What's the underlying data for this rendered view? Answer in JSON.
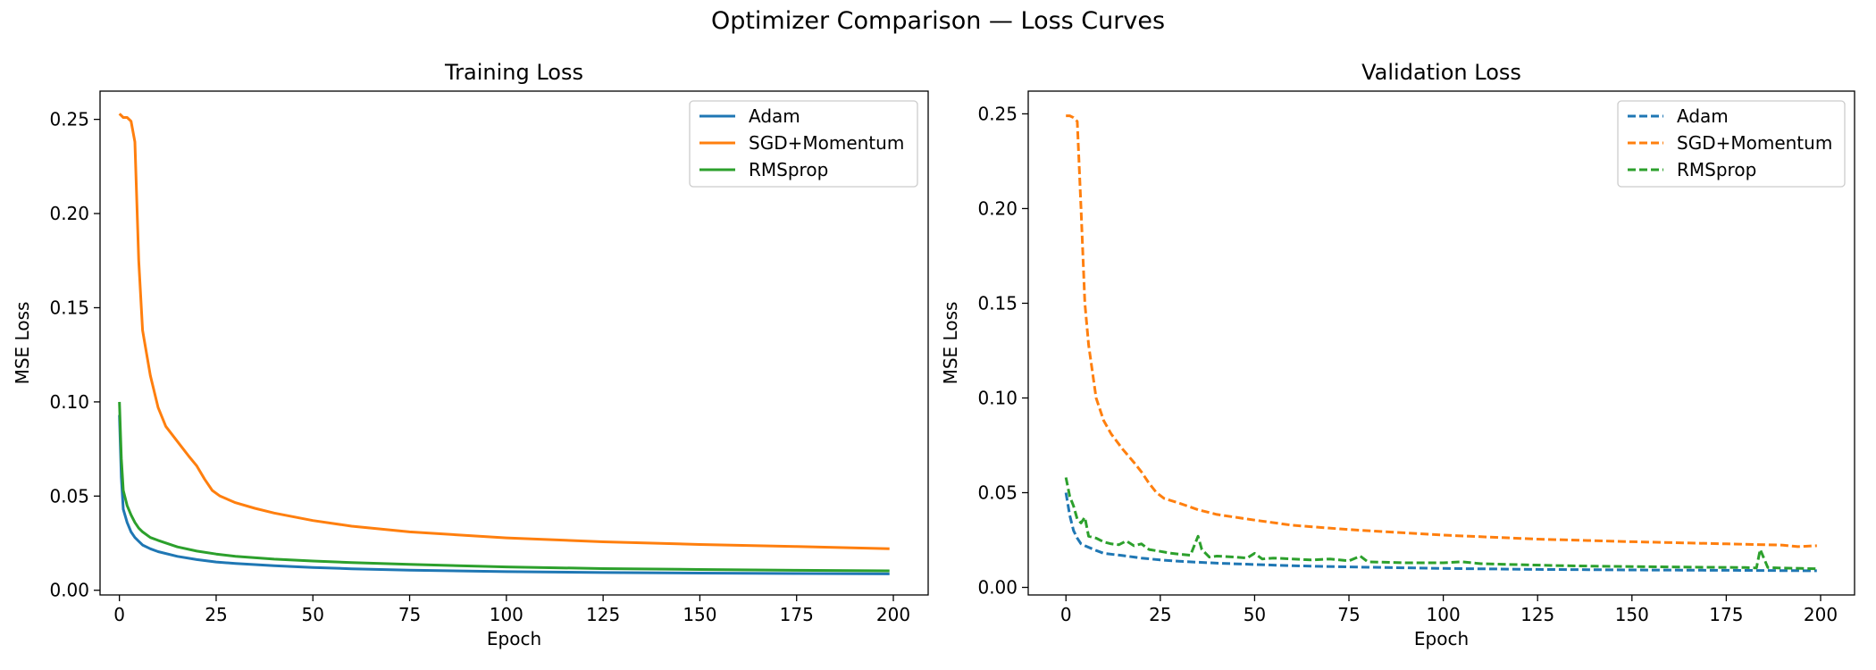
{
  "figure": {
    "suptitle": "Optimizer Comparison — Loss Curves"
  },
  "chart_data": [
    {
      "type": "line",
      "title": "Training Loss",
      "xlabel": "Epoch",
      "ylabel": "MSE Loss",
      "xlim": [
        -5,
        209
      ],
      "ylim": [
        -0.0025,
        0.265
      ],
      "xticks": [
        0,
        25,
        50,
        75,
        100,
        125,
        150,
        175,
        200
      ],
      "yticks": [
        0.0,
        0.05,
        0.1,
        0.15,
        0.2,
        0.25
      ],
      "ytick_labels": [
        "0.00",
        "0.05",
        "0.10",
        "0.15",
        "0.20",
        "0.25"
      ],
      "line_style": "solid",
      "legend_position": "top-right",
      "grid": false,
      "series": [
        {
          "name": "Adam",
          "color": "#1f77b4",
          "points": [
            [
              0,
              0.093
            ],
            [
              0.5,
              0.06
            ],
            [
              1,
              0.043
            ],
            [
              2,
              0.036
            ],
            [
              3,
              0.031
            ],
            [
              4,
              0.028
            ],
            [
              5,
              0.026
            ],
            [
              6,
              0.024
            ],
            [
              8,
              0.022
            ],
            [
              10,
              0.0205
            ],
            [
              15,
              0.018
            ],
            [
              20,
              0.0163
            ],
            [
              25,
              0.015
            ],
            [
              30,
              0.0142
            ],
            [
              40,
              0.013
            ],
            [
              50,
              0.0121
            ],
            [
              60,
              0.0114
            ],
            [
              75,
              0.0107
            ],
            [
              100,
              0.0099
            ],
            [
              125,
              0.0094
            ],
            [
              150,
              0.0091
            ],
            [
              175,
              0.0089
            ],
            [
              199,
              0.0087
            ]
          ]
        },
        {
          "name": "SGD+Momentum",
          "color": "#ff7f0e",
          "points": [
            [
              0,
              0.253
            ],
            [
              1,
              0.251
            ],
            [
              2,
              0.251
            ],
            [
              3,
              0.249
            ],
            [
              4,
              0.238
            ],
            [
              5,
              0.175
            ],
            [
              6,
              0.138
            ],
            [
              8,
              0.114
            ],
            [
              10,
              0.097
            ],
            [
              12,
              0.087
            ],
            [
              15,
              0.079
            ],
            [
              18,
              0.071
            ],
            [
              20,
              0.066
            ],
            [
              22,
              0.059
            ],
            [
              24,
              0.053
            ],
            [
              26,
              0.05
            ],
            [
              30,
              0.0465
            ],
            [
              35,
              0.0435
            ],
            [
              40,
              0.041
            ],
            [
              50,
              0.037
            ],
            [
              60,
              0.034
            ],
            [
              75,
              0.031
            ],
            [
              100,
              0.0278
            ],
            [
              125,
              0.0257
            ],
            [
              150,
              0.0243
            ],
            [
              175,
              0.0232
            ],
            [
              199,
              0.022
            ]
          ]
        },
        {
          "name": "RMSprop",
          "color": "#2ca02c",
          "points": [
            [
              0,
              0.1
            ],
            [
              0.5,
              0.07
            ],
            [
              1,
              0.053
            ],
            [
              2,
              0.045
            ],
            [
              3,
              0.04
            ],
            [
              4,
              0.036
            ],
            [
              5,
              0.033
            ],
            [
              6,
              0.031
            ],
            [
              8,
              0.028
            ],
            [
              10,
              0.0265
            ],
            [
              15,
              0.023
            ],
            [
              20,
              0.0208
            ],
            [
              25,
              0.0192
            ],
            [
              30,
              0.018
            ],
            [
              40,
              0.0165
            ],
            [
              50,
              0.0155
            ],
            [
              60,
              0.0147
            ],
            [
              75,
              0.0137
            ],
            [
              100,
              0.0124
            ],
            [
              125,
              0.0115
            ],
            [
              150,
              0.011
            ],
            [
              175,
              0.0106
            ],
            [
              199,
              0.0103
            ]
          ]
        }
      ]
    },
    {
      "type": "line",
      "title": "Validation Loss",
      "xlabel": "Epoch",
      "ylabel": "MSE Loss",
      "xlim": [
        -10,
        209
      ],
      "ylim": [
        -0.004,
        0.262
      ],
      "xticks": [
        0,
        25,
        50,
        75,
        100,
        125,
        150,
        175,
        200
      ],
      "yticks": [
        0.0,
        0.05,
        0.1,
        0.15,
        0.2,
        0.25
      ],
      "ytick_labels": [
        "0.00",
        "0.05",
        "0.10",
        "0.15",
        "0.20",
        "0.25"
      ],
      "line_style": "dashed",
      "legend_position": "top-right",
      "grid": false,
      "series": [
        {
          "name": "Adam",
          "color": "#1f77b4",
          "points": [
            [
              0,
              0.05
            ],
            [
              1,
              0.038
            ],
            [
              2,
              0.03
            ],
            [
              3,
              0.026
            ],
            [
              4,
              0.023
            ],
            [
              5,
              0.022
            ],
            [
              8,
              0.0195
            ],
            [
              10,
              0.018
            ],
            [
              15,
              0.0168
            ],
            [
              20,
              0.0155
            ],
            [
              25,
              0.0145
            ],
            [
              30,
              0.0138
            ],
            [
              40,
              0.0128
            ],
            [
              50,
              0.0121
            ],
            [
              60,
              0.0114
            ],
            [
              75,
              0.0108
            ],
            [
              100,
              0.01
            ],
            [
              125,
              0.0095
            ],
            [
              150,
              0.0092
            ],
            [
              175,
              0.009
            ],
            [
              199,
              0.0088
            ]
          ]
        },
        {
          "name": "SGD+Momentum",
          "color": "#ff7f0e",
          "points": [
            [
              0,
              0.249
            ],
            [
              1,
              0.249
            ],
            [
              2,
              0.248
            ],
            [
              3,
              0.246
            ],
            [
              4,
              0.2
            ],
            [
              5,
              0.15
            ],
            [
              6,
              0.128
            ],
            [
              8,
              0.1
            ],
            [
              10,
              0.088
            ],
            [
              12,
              0.081
            ],
            [
              15,
              0.073
            ],
            [
              18,
              0.066
            ],
            [
              20,
              0.061
            ],
            [
              22,
              0.055
            ],
            [
              24,
              0.05
            ],
            [
              26,
              0.047
            ],
            [
              30,
              0.0445
            ],
            [
              35,
              0.041
            ],
            [
              40,
              0.0385
            ],
            [
              50,
              0.0355
            ],
            [
              60,
              0.0328
            ],
            [
              75,
              0.0305
            ],
            [
              100,
              0.0276
            ],
            [
              125,
              0.0255
            ],
            [
              150,
              0.0241
            ],
            [
              175,
              0.023
            ],
            [
              190,
              0.0223
            ],
            [
              194,
              0.0215
            ],
            [
              199,
              0.022
            ]
          ]
        },
        {
          "name": "RMSprop",
          "color": "#2ca02c",
          "points": [
            [
              0,
              0.058
            ],
            [
              1,
              0.048
            ],
            [
              2,
              0.043
            ],
            [
              3,
              0.036
            ],
            [
              4,
              0.034
            ],
            [
              5,
              0.037
            ],
            [
              6,
              0.027
            ],
            [
              8,
              0.026
            ],
            [
              10,
              0.024
            ],
            [
              12,
              0.023
            ],
            [
              14,
              0.0225
            ],
            [
              16,
              0.0245
            ],
            [
              18,
              0.022
            ],
            [
              20,
              0.023
            ],
            [
              22,
              0.02
            ],
            [
              25,
              0.019
            ],
            [
              28,
              0.018
            ],
            [
              30,
              0.0175
            ],
            [
              33,
              0.017
            ],
            [
              35,
              0.027
            ],
            [
              36,
              0.02
            ],
            [
              38,
              0.016
            ],
            [
              40,
              0.0165
            ],
            [
              45,
              0.016
            ],
            [
              48,
              0.0155
            ],
            [
              50,
              0.018
            ],
            [
              52,
              0.015
            ],
            [
              55,
              0.0155
            ],
            [
              60,
              0.015
            ],
            [
              65,
              0.0145
            ],
            [
              70,
              0.015
            ],
            [
              75,
              0.014
            ],
            [
              78,
              0.0165
            ],
            [
              80,
              0.0135
            ],
            [
              90,
              0.013
            ],
            [
              100,
              0.013
            ],
            [
              105,
              0.0135
            ],
            [
              110,
              0.0125
            ],
            [
              120,
              0.012
            ],
            [
              130,
              0.0115
            ],
            [
              140,
              0.0112
            ],
            [
              150,
              0.011
            ],
            [
              160,
              0.0108
            ],
            [
              170,
              0.0106
            ],
            [
              180,
              0.0105
            ],
            [
              183,
              0.0103
            ],
            [
              184,
              0.02
            ],
            [
              186,
              0.0105
            ],
            [
              190,
              0.0102
            ],
            [
              195,
              0.01
            ],
            [
              199,
              0.0098
            ]
          ]
        }
      ]
    }
  ]
}
